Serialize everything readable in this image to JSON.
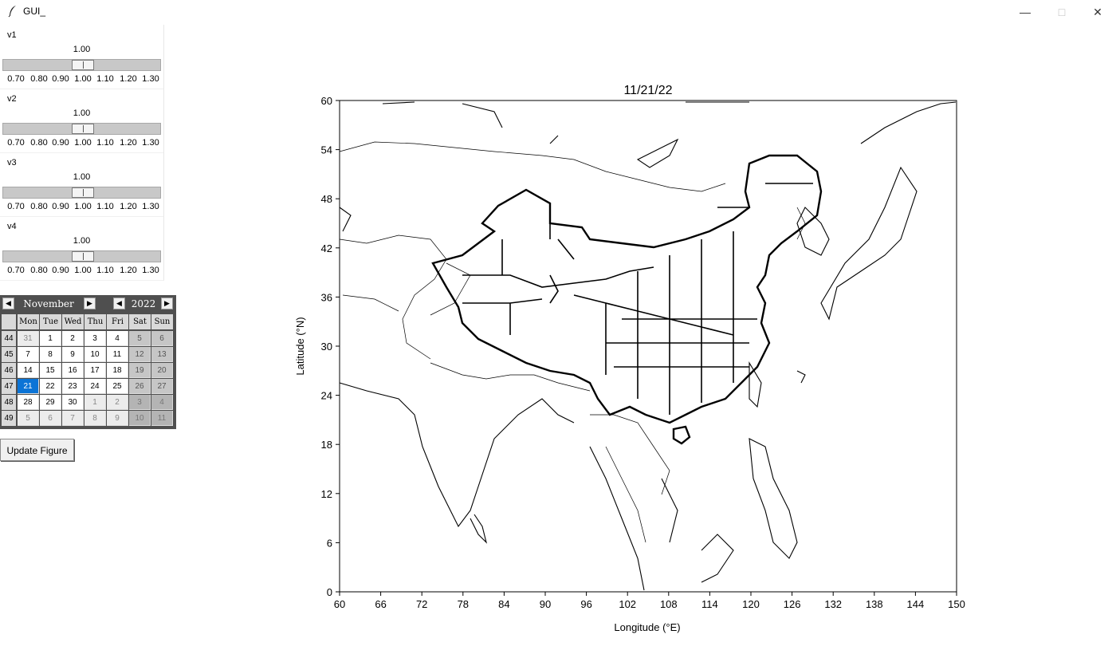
{
  "window": {
    "title": "GUI_"
  },
  "sliders": [
    {
      "name": "v1",
      "value": "1.00",
      "level": 1.0
    },
    {
      "name": "v2",
      "value": "1.00",
      "level": 1.0
    },
    {
      "name": "v3",
      "value": "1.00",
      "level": 1.0
    },
    {
      "name": "v4",
      "value": "1.00",
      "level": 1.0
    }
  ],
  "slider_ticks": [
    "0.70",
    "0.80",
    "0.90",
    "1.00",
    "1.10",
    "1.20",
    "1.30"
  ],
  "calendar": {
    "month": "November",
    "year": "2022",
    "weekdays": [
      "Mon",
      "Tue",
      "Wed",
      "Thu",
      "Fri",
      "Sat",
      "Sun"
    ],
    "weeks": [
      {
        "num": "44",
        "days": [
          "31",
          "1",
          "2",
          "3",
          "4",
          "5",
          "6"
        ]
      },
      {
        "num": "45",
        "days": [
          "7",
          "8",
          "9",
          "10",
          "11",
          "12",
          "13"
        ]
      },
      {
        "num": "46",
        "days": [
          "14",
          "15",
          "16",
          "17",
          "18",
          "19",
          "20"
        ]
      },
      {
        "num": "47",
        "days": [
          "21",
          "22",
          "23",
          "24",
          "25",
          "26",
          "27"
        ]
      },
      {
        "num": "48",
        "days": [
          "28",
          "29",
          "30",
          "1",
          "2",
          "3",
          "4"
        ]
      },
      {
        "num": "49",
        "days": [
          "5",
          "6",
          "7",
          "8",
          "9",
          "10",
          "11"
        ]
      }
    ],
    "selected": "21"
  },
  "update_button": "Update Figure",
  "map": {
    "title": "11/21/22",
    "xlabel": "Longitude (°E)",
    "ylabel": "Latitude (°N)",
    "xticks": [
      "60",
      "66",
      "72",
      "78",
      "84",
      "90",
      "96",
      "102",
      "108",
      "114",
      "120",
      "126",
      "132",
      "138",
      "144",
      "150"
    ],
    "yticks": [
      "0",
      "6",
      "12",
      "18",
      "24",
      "30",
      "36",
      "42",
      "48",
      "54",
      "60"
    ]
  }
}
